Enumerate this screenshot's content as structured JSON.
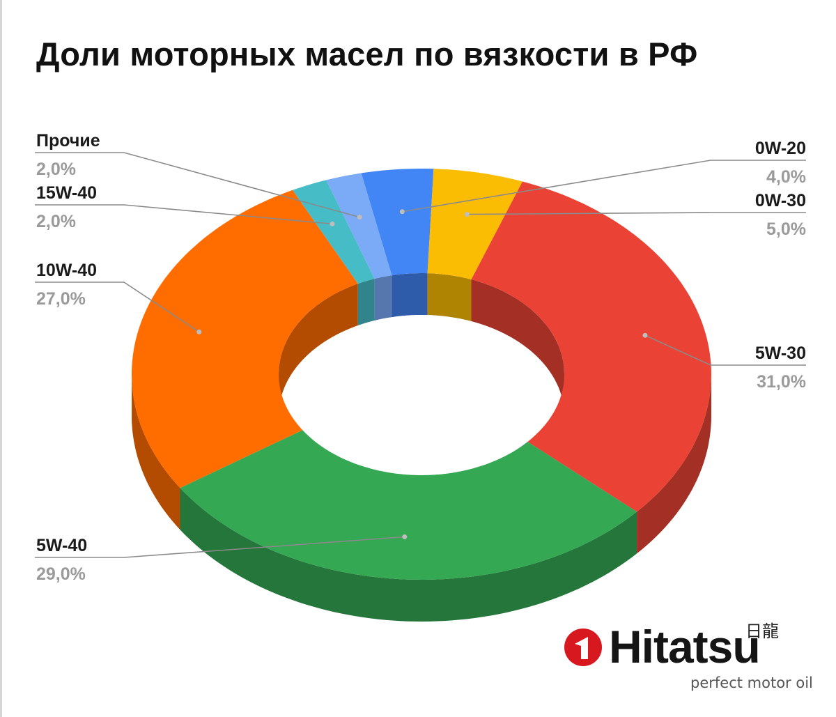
{
  "chart_data": {
    "type": "pie",
    "variant": "3d-donut",
    "title": "Доли моторных масел по вязкости в РФ",
    "slices": [
      {
        "label": "0W-20",
        "value": 4.0,
        "value_text": "4,0%",
        "color": "#4285f4",
        "side_color": "#2e5cab"
      },
      {
        "label": "0W-30",
        "value": 5.0,
        "value_text": "5,0%",
        "color": "#fbbc04",
        "side_color": "#b08403"
      },
      {
        "label": "5W-30",
        "value": 31.0,
        "value_text": "31,0%",
        "color": "#ea4335",
        "side_color": "#a42f25"
      },
      {
        "label": "5W-40",
        "value": 29.0,
        "value_text": "29,0%",
        "color": "#34a853",
        "side_color": "#24763a"
      },
      {
        "label": "10W-40",
        "value": 27.0,
        "value_text": "27,0%",
        "color": "#ff6d01",
        "side_color": "#b34c01"
      },
      {
        "label": "15W-40",
        "value": 2.0,
        "value_text": "2,0%",
        "color": "#46bdc6",
        "side_color": "#31848b"
      },
      {
        "label": "Прочие",
        "value": 2.0,
        "value_text": "2,0%",
        "color": "#7baaf7",
        "side_color": "#5677ad"
      }
    ],
    "legend": "none",
    "data_labels": "outside with leader lines"
  },
  "brand": {
    "name": "Hitatsu",
    "kanji": "日龍",
    "tagline": "perfect motor oil",
    "accent_color": "#d7191f"
  }
}
